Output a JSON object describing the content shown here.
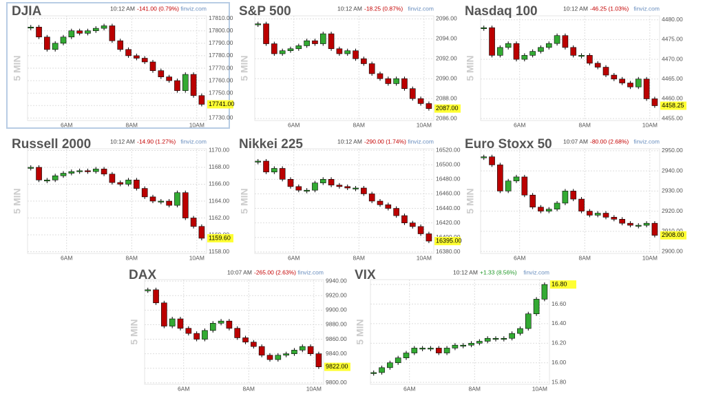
{
  "chart_data": [
    {
      "type": "candlestick",
      "title": "DJIA",
      "time": "10:12 AM",
      "change": "-141.00 (0.79%)",
      "change_color": "#c40000",
      "source": "finviz.com",
      "interval": "5 MIN",
      "up_color": "#33aa33",
      "down_color": "#bb0000",
      "x": [
        4.9,
        5.15,
        5.4,
        5.65,
        5.9,
        6.15,
        6.4,
        6.65,
        6.9,
        7.15,
        7.4,
        7.65,
        7.9,
        8.15,
        8.4,
        8.65,
        8.9,
        9.15,
        9.4,
        9.65,
        9.9,
        10.15
      ],
      "values": [
        17803,
        17795,
        17785,
        17790,
        17795,
        17800,
        17798,
        17800,
        17802,
        17804,
        17792,
        17785,
        17780,
        17778,
        17775,
        17768,
        17763,
        17760,
        17752,
        17765,
        17748,
        17741
      ],
      "value_labels": [
        null,
        null,
        null,
        null,
        null,
        null,
        null,
        null,
        null,
        null,
        null,
        null,
        null,
        null,
        null,
        null,
        null,
        null,
        null,
        null,
        null,
        "17741.00"
      ],
      "xlim": [
        4.8,
        10.3
      ],
      "xticks": [
        {
          "value": 6,
          "label": "6AM"
        },
        {
          "value": 8,
          "label": "8AM"
        },
        {
          "value": 10,
          "label": "10AM"
        }
      ],
      "ylim": [
        17728,
        17812
      ],
      "yticks": [
        {
          "value": 17730,
          "label": "17730.00"
        },
        {
          "value": 17740,
          "label": "17740.00"
        },
        {
          "value": 17750,
          "label": "17750.00"
        },
        {
          "value": 17760,
          "label": "17760.00"
        },
        {
          "value": 17770,
          "label": "17770.00"
        },
        {
          "value": 17780,
          "label": "17780.00"
        },
        {
          "value": 17790,
          "label": "17790.00"
        },
        {
          "value": 17800,
          "label": "17800.00"
        },
        {
          "value": 17810,
          "label": "17810.00"
        }
      ],
      "grid": true
    },
    {
      "type": "candlestick",
      "title": "S&P 500",
      "time": "10:12 AM",
      "change": "-18.25 (0.87%)",
      "change_color": "#c40000",
      "source": "finviz.com",
      "interval": "5 MIN",
      "up_color": "#33aa33",
      "down_color": "#bb0000",
      "x": [
        4.9,
        5.15,
        5.4,
        5.65,
        5.9,
        6.15,
        6.4,
        6.65,
        6.9,
        7.15,
        7.4,
        7.65,
        7.9,
        8.15,
        8.4,
        8.65,
        8.9,
        9.15,
        9.4,
        9.65,
        9.9,
        10.15
      ],
      "values": [
        2095.5,
        2093.5,
        2092.5,
        2092.8,
        2093,
        2093.3,
        2093.8,
        2093.5,
        2094.5,
        2093,
        2092.5,
        2092.8,
        2092,
        2091.5,
        2090.5,
        2090,
        2089.5,
        2090,
        2089,
        2088,
        2087.5,
        2087
      ],
      "value_labels": [
        null,
        null,
        null,
        null,
        null,
        null,
        null,
        null,
        null,
        null,
        null,
        null,
        null,
        null,
        null,
        null,
        null,
        null,
        null,
        null,
        null,
        "2087.00"
      ],
      "xlim": [
        4.8,
        10.3
      ],
      "xticks": [
        {
          "value": 6,
          "label": "6AM"
        },
        {
          "value": 8,
          "label": "8AM"
        },
        {
          "value": 10,
          "label": "10AM"
        }
      ],
      "ylim": [
        2085.8,
        2096.3
      ],
      "yticks": [
        {
          "value": 2086,
          "label": "2086.00"
        },
        {
          "value": 2088,
          "label": "2088.00"
        },
        {
          "value": 2090,
          "label": "2090.00"
        },
        {
          "value": 2092,
          "label": "2092.00"
        },
        {
          "value": 2094,
          "label": "2094.00"
        },
        {
          "value": 2096,
          "label": "2096.00"
        }
      ],
      "grid": true
    },
    {
      "type": "candlestick",
      "title": "Nasdaq 100",
      "time": "10:12 AM",
      "change": "-46.25 (1.03%)",
      "change_color": "#c40000",
      "source": "finviz.com",
      "interval": "5 MIN",
      "up_color": "#33aa33",
      "down_color": "#bb0000",
      "x": [
        4.9,
        5.15,
        5.4,
        5.65,
        5.9,
        6.15,
        6.4,
        6.65,
        6.9,
        7.15,
        7.4,
        7.65,
        7.9,
        8.15,
        8.4,
        8.65,
        8.9,
        9.15,
        9.4,
        9.65,
        9.9,
        10.15
      ],
      "values": [
        4478,
        4471,
        4473,
        4474,
        4470,
        4471,
        4472,
        4473,
        4474,
        4476,
        4473,
        4471,
        4471,
        4469,
        4468,
        4466,
        4465,
        4464,
        4463,
        4465,
        4460,
        4458.25
      ],
      "value_labels": [
        null,
        null,
        null,
        null,
        null,
        null,
        null,
        null,
        null,
        null,
        null,
        null,
        null,
        null,
        null,
        null,
        null,
        null,
        null,
        null,
        null,
        "4458.25"
      ],
      "xlim": [
        4.8,
        10.3
      ],
      "xticks": [
        {
          "value": 6,
          "label": "6AM"
        },
        {
          "value": 8,
          "label": "8AM"
        },
        {
          "value": 10,
          "label": "10AM"
        }
      ],
      "ylim": [
        4454.5,
        4481
      ],
      "yticks": [
        {
          "value": 4455,
          "label": "4455.00"
        },
        {
          "value": 4460,
          "label": "4460.00"
        },
        {
          "value": 4465,
          "label": "4465.00"
        },
        {
          "value": 4470,
          "label": "4470.00"
        },
        {
          "value": 4475,
          "label": "4475.00"
        },
        {
          "value": 4480,
          "label": "4480.00"
        }
      ],
      "grid": true
    },
    {
      "type": "candlestick",
      "title": "Russell 2000",
      "time": "10:12 AM",
      "change": "-14.90 (1.27%)",
      "change_color": "#c40000",
      "source": "finviz.com",
      "interval": "5 MIN",
      "up_color": "#33aa33",
      "down_color": "#bb0000",
      "x": [
        4.9,
        5.15,
        5.4,
        5.65,
        5.9,
        6.15,
        6.4,
        6.65,
        6.9,
        7.15,
        7.4,
        7.65,
        7.9,
        8.15,
        8.4,
        8.65,
        8.9,
        9.15,
        9.4,
        9.65,
        9.9,
        10.15
      ],
      "values": [
        1168,
        1166.5,
        1166.5,
        1167,
        1167.3,
        1167.5,
        1167.6,
        1167.5,
        1167.8,
        1167.2,
        1166.2,
        1166,
        1166.5,
        1165.5,
        1164.5,
        1164,
        1164,
        1163.5,
        1165,
        1162,
        1161,
        1159.6
      ],
      "value_labels": [
        null,
        null,
        null,
        null,
        null,
        null,
        null,
        null,
        null,
        null,
        null,
        null,
        null,
        null,
        null,
        null,
        null,
        null,
        null,
        null,
        null,
        "1159.60"
      ],
      "xlim": [
        4.8,
        10.3
      ],
      "xticks": [
        {
          "value": 6,
          "label": "6AM"
        },
        {
          "value": 8,
          "label": "8AM"
        },
        {
          "value": 10,
          "label": "10AM"
        }
      ],
      "ylim": [
        1157.8,
        1170.2
      ],
      "yticks": [
        {
          "value": 1158,
          "label": "1158.00"
        },
        {
          "value": 1160,
          "label": "1160.00"
        },
        {
          "value": 1162,
          "label": "1162.00"
        },
        {
          "value": 1164,
          "label": "1164.00"
        },
        {
          "value": 1166,
          "label": "1166.00"
        },
        {
          "value": 1168,
          "label": "1168.00"
        },
        {
          "value": 1170,
          "label": "1170.00"
        }
      ],
      "grid": true
    },
    {
      "type": "candlestick",
      "title": "Nikkei 225",
      "time": "10:12 AM",
      "change": "-290.00 (1.74%)",
      "change_color": "#c40000",
      "source": "finviz.com",
      "interval": "5 MIN",
      "up_color": "#33aa33",
      "down_color": "#bb0000",
      "x": [
        4.9,
        5.15,
        5.4,
        5.65,
        5.9,
        6.15,
        6.4,
        6.65,
        6.9,
        7.15,
        7.4,
        7.65,
        7.9,
        8.15,
        8.4,
        8.65,
        8.9,
        9.15,
        9.4,
        9.65,
        9.9,
        10.15
      ],
      "values": [
        16505,
        16490,
        16495,
        16480,
        16470,
        16465,
        16465,
        16475,
        16480,
        16472,
        16470,
        16468,
        16468,
        16460,
        16450,
        16445,
        16440,
        16430,
        16420,
        16415,
        16405,
        16395
      ],
      "value_labels": [
        null,
        null,
        null,
        null,
        null,
        null,
        null,
        null,
        null,
        null,
        null,
        null,
        null,
        null,
        null,
        null,
        null,
        null,
        null,
        null,
        null,
        "16395.00"
      ],
      "xlim": [
        4.8,
        10.3
      ],
      "xticks": [
        {
          "value": 6,
          "label": "6AM"
        },
        {
          "value": 8,
          "label": "8AM"
        },
        {
          "value": 10,
          "label": "10AM"
        }
      ],
      "ylim": [
        16378,
        16522
      ],
      "yticks": [
        {
          "value": 16380,
          "label": "16380.00"
        },
        {
          "value": 16400,
          "label": "16400.00"
        },
        {
          "value": 16420,
          "label": "16420.00"
        },
        {
          "value": 16440,
          "label": "16440.00"
        },
        {
          "value": 16460,
          "label": "16460.00"
        },
        {
          "value": 16480,
          "label": "16480.00"
        },
        {
          "value": 16500,
          "label": "16500.00"
        },
        {
          "value": 16520,
          "label": "16520.00"
        }
      ],
      "grid": true
    },
    {
      "type": "candlestick",
      "title": "Euro Stoxx 50",
      "time": "10:07 AM",
      "change": "-80.00 (2.68%)",
      "change_color": "#c40000",
      "source": "finviz.com",
      "interval": "5 MIN",
      "up_color": "#33aa33",
      "down_color": "#bb0000",
      "x": [
        4.9,
        5.15,
        5.4,
        5.65,
        5.9,
        6.15,
        6.4,
        6.65,
        6.9,
        7.15,
        7.4,
        7.65,
        7.9,
        8.15,
        8.4,
        8.65,
        8.9,
        9.15,
        9.4,
        9.65,
        9.9,
        10.15
      ],
      "values": [
        2947,
        2943,
        2930,
        2935,
        2937,
        2928,
        2922,
        2920,
        2921,
        2924,
        2930,
        2926,
        2920,
        2918,
        2919,
        2917,
        2916,
        2914,
        2913,
        2913,
        2914,
        2908
      ],
      "value_labels": [
        null,
        null,
        null,
        null,
        null,
        null,
        null,
        null,
        null,
        null,
        null,
        null,
        null,
        null,
        null,
        null,
        null,
        null,
        null,
        null,
        null,
        "2908.00"
      ],
      "xlim": [
        4.8,
        10.3
      ],
      "xticks": [
        {
          "value": 6,
          "label": "6AM"
        },
        {
          "value": 8,
          "label": "8AM"
        },
        {
          "value": 10,
          "label": "10AM"
        }
      ],
      "ylim": [
        2899,
        2951
      ],
      "yticks": [
        {
          "value": 2900,
          "label": "2900.00"
        },
        {
          "value": 2910,
          "label": "2910.00"
        },
        {
          "value": 2920,
          "label": "2920.00"
        },
        {
          "value": 2930,
          "label": "2930.00"
        },
        {
          "value": 2940,
          "label": "2940.00"
        },
        {
          "value": 2950,
          "label": "2950.00"
        }
      ],
      "grid": true
    },
    {
      "type": "candlestick",
      "title": "DAX",
      "time": "10:07 AM",
      "change": "-265.00 (2.63%)",
      "change_color": "#c40000",
      "source": "finviz.com",
      "interval": "5 MIN",
      "up_color": "#33aa33",
      "down_color": "#bb0000",
      "x": [
        4.9,
        5.15,
        5.4,
        5.65,
        5.9,
        6.15,
        6.4,
        6.65,
        6.9,
        7.15,
        7.4,
        7.65,
        7.9,
        8.15,
        8.4,
        8.65,
        8.9,
        9.15,
        9.4,
        9.65,
        9.9,
        10.15
      ],
      "values": [
        9928,
        9910,
        9878,
        9888,
        9875,
        9868,
        9860,
        9872,
        9882,
        9885,
        9875,
        9862,
        9856,
        9850,
        9838,
        9832,
        9838,
        9840,
        9845,
        9850,
        9840,
        9822
      ],
      "value_labels": [
        null,
        null,
        null,
        null,
        null,
        null,
        null,
        null,
        null,
        null,
        null,
        null,
        null,
        null,
        null,
        null,
        null,
        null,
        null,
        null,
        null,
        "9822.00"
      ],
      "xlim": [
        4.8,
        10.3
      ],
      "xticks": [
        {
          "value": 6,
          "label": "6AM"
        },
        {
          "value": 8,
          "label": "8AM"
        },
        {
          "value": 10,
          "label": "10AM"
        }
      ],
      "ylim": [
        9798,
        9942
      ],
      "yticks": [
        {
          "value": 9800,
          "label": "9800.00"
        },
        {
          "value": 9820,
          "label": "9820.00"
        },
        {
          "value": 9840,
          "label": "9840.00"
        },
        {
          "value": 9860,
          "label": "9860.00"
        },
        {
          "value": 9880,
          "label": "9880.00"
        },
        {
          "value": 9900,
          "label": "9900.00"
        },
        {
          "value": 9920,
          "label": "9920.00"
        },
        {
          "value": 9940,
          "label": "9940.00"
        }
      ],
      "grid": true
    },
    {
      "type": "candlestick",
      "title": "VIX",
      "time": "10:12 AM",
      "change": "+1.33 (8.56%)",
      "change_color": "#22992a",
      "source": "finviz.com",
      "interval": "5 MIN",
      "up_color": "#33aa33",
      "down_color": "#bb0000",
      "x": [
        4.9,
        5.15,
        5.4,
        5.65,
        5.9,
        6.15,
        6.4,
        6.65,
        6.9,
        7.15,
        7.4,
        7.65,
        7.9,
        8.15,
        8.4,
        8.65,
        8.9,
        9.15,
        9.4,
        9.65,
        9.9,
        10.15
      ],
      "values": [
        15.9,
        15.95,
        16.0,
        16.05,
        16.1,
        16.15,
        16.15,
        16.15,
        16.1,
        16.15,
        16.18,
        16.18,
        16.2,
        16.22,
        16.25,
        16.25,
        16.25,
        16.3,
        16.35,
        16.5,
        16.65,
        16.8
      ],
      "value_labels": [
        null,
        null,
        null,
        null,
        null,
        null,
        null,
        null,
        null,
        null,
        null,
        null,
        null,
        null,
        null,
        null,
        null,
        null,
        null,
        null,
        null,
        "16.80"
      ],
      "xlim": [
        4.8,
        10.3
      ],
      "xticks": [
        {
          "value": 6,
          "label": "6AM"
        },
        {
          "value": 8,
          "label": "8AM"
        },
        {
          "value": 10,
          "label": "10AM"
        }
      ],
      "ylim": [
        15.78,
        16.85
      ],
      "yticks": [
        {
          "value": 15.8,
          "label": "15.80"
        },
        {
          "value": 16.0,
          "label": "16.00"
        },
        {
          "value": 16.2,
          "label": "16.20"
        },
        {
          "value": 16.4,
          "label": "16.40"
        },
        {
          "value": 16.6,
          "label": "16.60"
        },
        {
          "value": 16.8,
          "label": "16.80"
        }
      ],
      "grid": true
    }
  ]
}
